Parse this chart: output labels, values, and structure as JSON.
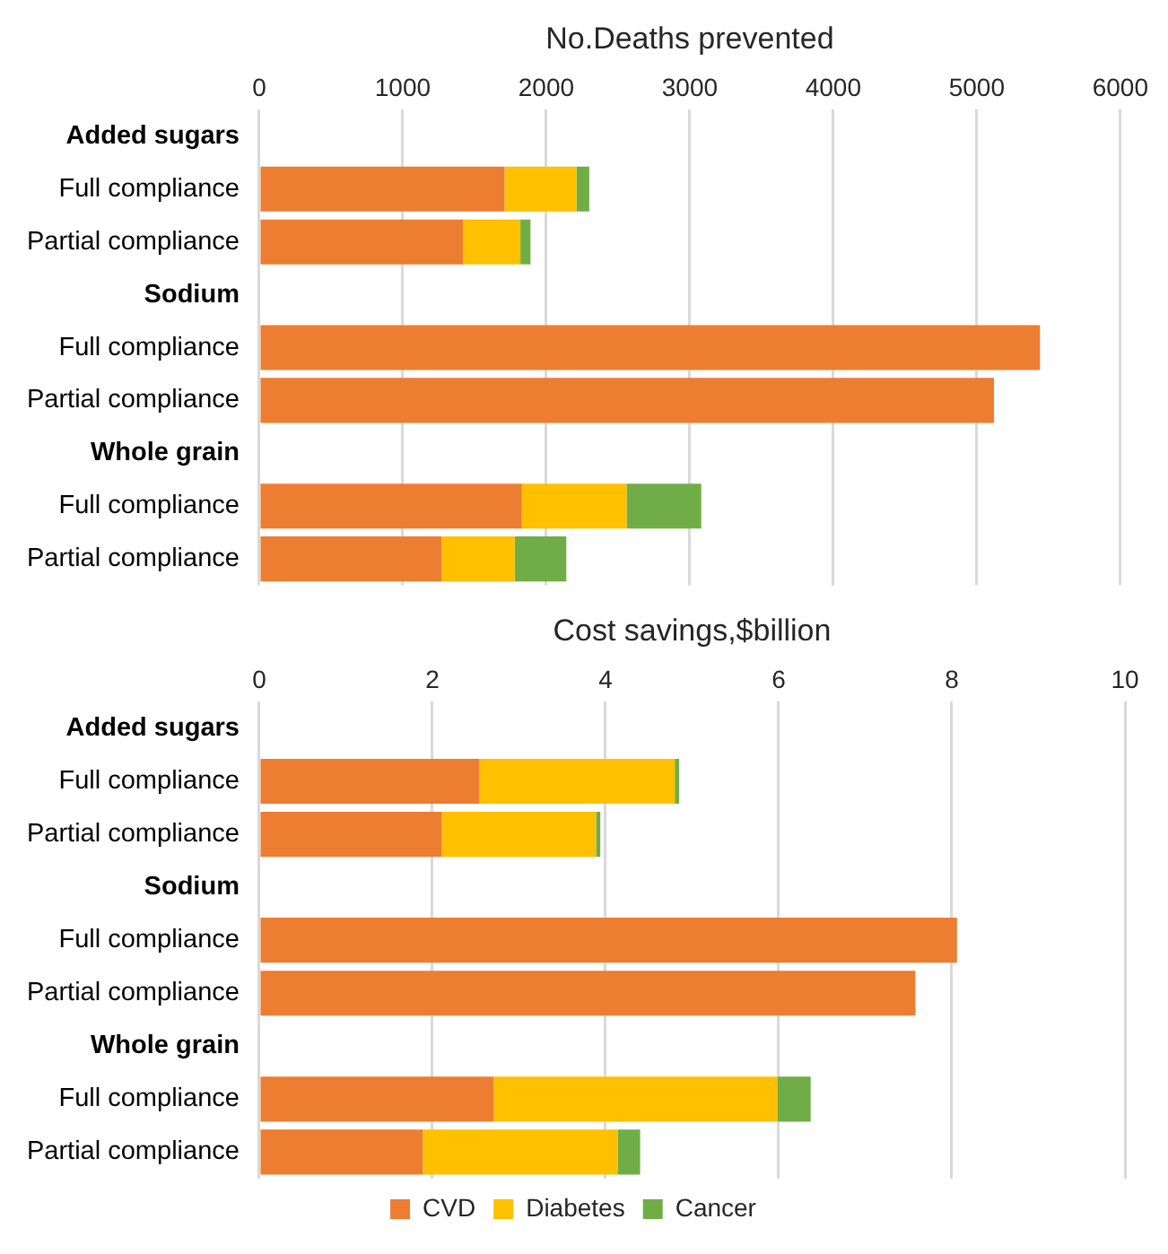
{
  "chart_data": [
    {
      "type": "bar",
      "orientation": "horizontal",
      "stacked": true,
      "xlabel": "No.Deaths prevented",
      "categories": [
        "Added sugars",
        "Full compliance",
        "Partial compliance",
        "Sodium",
        "Full compliance",
        "Partial compliance",
        "Whole grain",
        "Full compliance",
        "Partial compliance"
      ],
      "series": [
        {
          "color": "#ed7d31",
          "values": [
            null,
            1710,
            1420,
            null,
            5440,
            5120,
            null,
            1830,
            1270
          ]
        },
        {
          "color": "#ffc000",
          "values": [
            null,
            500,
            400,
            null,
            0,
            0,
            null,
            730,
            510
          ]
        },
        {
          "color": "#70ad47",
          "values": [
            null,
            90,
            70,
            null,
            0,
            0,
            null,
            520,
            360
          ]
        }
      ],
      "xlim": [
        0,
        6000
      ],
      "xticks": [
        0,
        1000,
        2000,
        3000,
        4000,
        5000,
        6000
      ],
      "grid": "x",
      "legend": false
    },
    {
      "type": "bar",
      "orientation": "horizontal",
      "stacked": true,
      "xlabel": "Cost savings,$billion",
      "categories": [
        "Added sugars",
        "Full compliance",
        "Partial compliance",
        "Sodium",
        "Full compliance",
        "Partial compliance",
        "Whole grain",
        "Full compliance",
        "Partial compliance"
      ],
      "series": [
        {
          "name": "CVD",
          "color": "#ed7d31",
          "values": [
            null,
            2.54,
            2.11,
            null,
            8.06,
            7.58,
            null,
            2.71,
            1.89
          ]
        },
        {
          "name": "Diabetes",
          "color": "#ffc000",
          "values": [
            null,
            2.26,
            1.78,
            null,
            0,
            0,
            null,
            3.28,
            2.25
          ]
        },
        {
          "name": "Cancer",
          "color": "#70ad47",
          "values": [
            null,
            0.05,
            0.05,
            null,
            0,
            0,
            null,
            0.38,
            0.26
          ]
        }
      ],
      "xlim": [
        0,
        10
      ],
      "xticks": [
        0,
        2,
        4,
        6,
        8,
        10
      ],
      "grid": "x",
      "legend": "bottom"
    }
  ]
}
